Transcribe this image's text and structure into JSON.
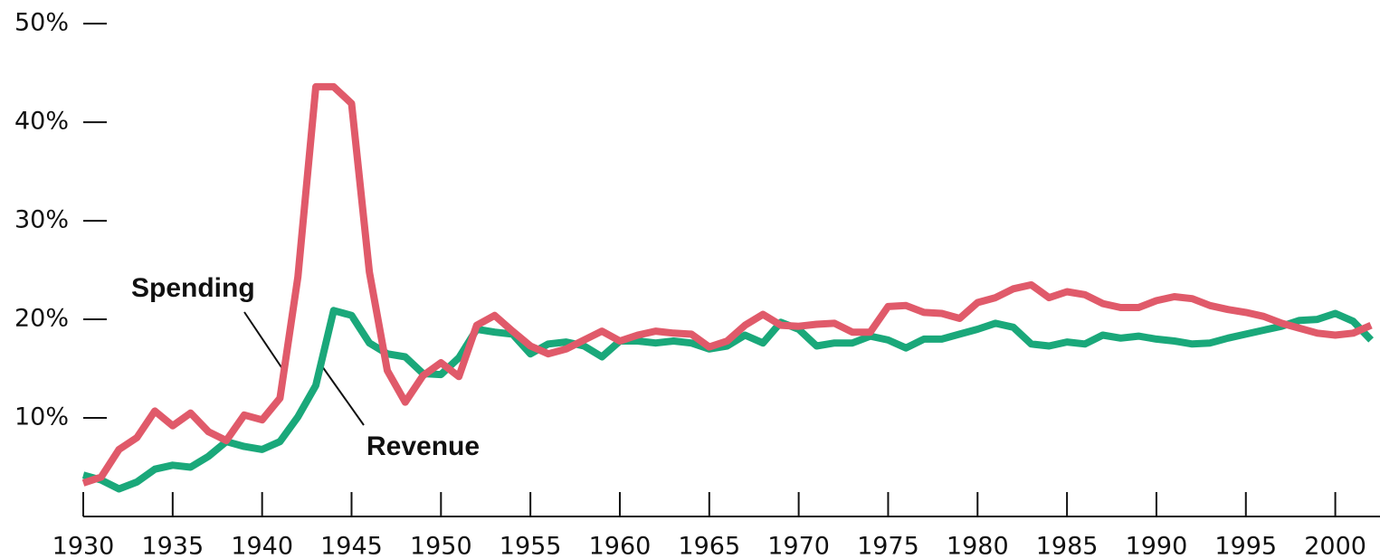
{
  "chart_data": {
    "type": "line",
    "x": [
      1930,
      1931,
      1932,
      1933,
      1934,
      1935,
      1936,
      1937,
      1938,
      1939,
      1940,
      1941,
      1942,
      1943,
      1944,
      1945,
      1946,
      1947,
      1948,
      1949,
      1950,
      1951,
      1952,
      1953,
      1954,
      1955,
      1956,
      1957,
      1958,
      1959,
      1960,
      1961,
      1962,
      1963,
      1964,
      1965,
      1966,
      1967,
      1968,
      1969,
      1970,
      1971,
      1972,
      1973,
      1974,
      1975,
      1976,
      1977,
      1978,
      1979,
      1980,
      1981,
      1982,
      1983,
      1984,
      1985,
      1986,
      1987,
      1988,
      1989,
      1990,
      1991,
      1992,
      1993,
      1994,
      1995,
      1996,
      1997,
      1998,
      1999,
      2000,
      2001,
      2002
    ],
    "series": [
      {
        "name": "Revenue",
        "color": "#1aa87a",
        "values": [
          4.2,
          3.7,
          2.8,
          3.5,
          4.8,
          5.2,
          5.0,
          6.1,
          7.6,
          7.1,
          6.8,
          7.6,
          10.1,
          13.3,
          20.9,
          20.4,
          17.6,
          16.5,
          16.2,
          14.5,
          14.4,
          16.1,
          19.0,
          18.7,
          18.5,
          16.5,
          17.5,
          17.7,
          17.3,
          16.2,
          17.8,
          17.8,
          17.6,
          17.8,
          17.6,
          17.0,
          17.3,
          18.4,
          17.6,
          19.7,
          19.0,
          17.3,
          17.6,
          17.6,
          18.3,
          17.9,
          17.1,
          18.0,
          18.0,
          18.5,
          19.0,
          19.6,
          19.2,
          17.5,
          17.3,
          17.7,
          17.5,
          18.4,
          18.1,
          18.3,
          18.0,
          17.8,
          17.5,
          17.6,
          18.1,
          18.5,
          18.9,
          19.3,
          19.9,
          20.0,
          20.6,
          19.8,
          17.9
        ]
      },
      {
        "name": "Spending",
        "color": "#e05a6a",
        "values": [
          3.4,
          4.0,
          6.8,
          8.0,
          10.7,
          9.2,
          10.5,
          8.6,
          7.7,
          10.3,
          9.8,
          12.0,
          24.3,
          43.6,
          43.6,
          41.9,
          24.8,
          14.8,
          11.6,
          14.3,
          15.6,
          14.2,
          19.4,
          20.4,
          18.8,
          17.3,
          16.5,
          17.0,
          17.9,
          18.8,
          17.8,
          18.4,
          18.8,
          18.6,
          18.5,
          17.2,
          17.8,
          19.4,
          20.5,
          19.4,
          19.3,
          19.5,
          19.6,
          18.7,
          18.7,
          21.3,
          21.4,
          20.7,
          20.6,
          20.1,
          21.7,
          22.2,
          23.1,
          23.5,
          22.2,
          22.8,
          22.5,
          21.6,
          21.2,
          21.2,
          21.9,
          22.3,
          22.1,
          21.4,
          21.0,
          20.7,
          20.3,
          19.6,
          19.1,
          18.6,
          18.4,
          18.6,
          19.4
        ]
      }
    ],
    "annotations": [
      "Spending",
      "Revenue"
    ],
    "xlim": [
      1930,
      2002.5
    ],
    "xticks": [
      1930,
      1935,
      1940,
      1945,
      1950,
      1955,
      1960,
      1965,
      1970,
      1975,
      1980,
      1985,
      1990,
      1995,
      2000
    ],
    "ylim": [
      0,
      52.4
    ],
    "yticks": [
      {
        "value": 10,
        "label": "10%"
      },
      {
        "value": 20,
        "label": "20%"
      },
      {
        "value": 30,
        "label": "30%"
      },
      {
        "value": 40,
        "label": "40%"
      },
      {
        "value": 50,
        "label": "50%"
      }
    ]
  }
}
